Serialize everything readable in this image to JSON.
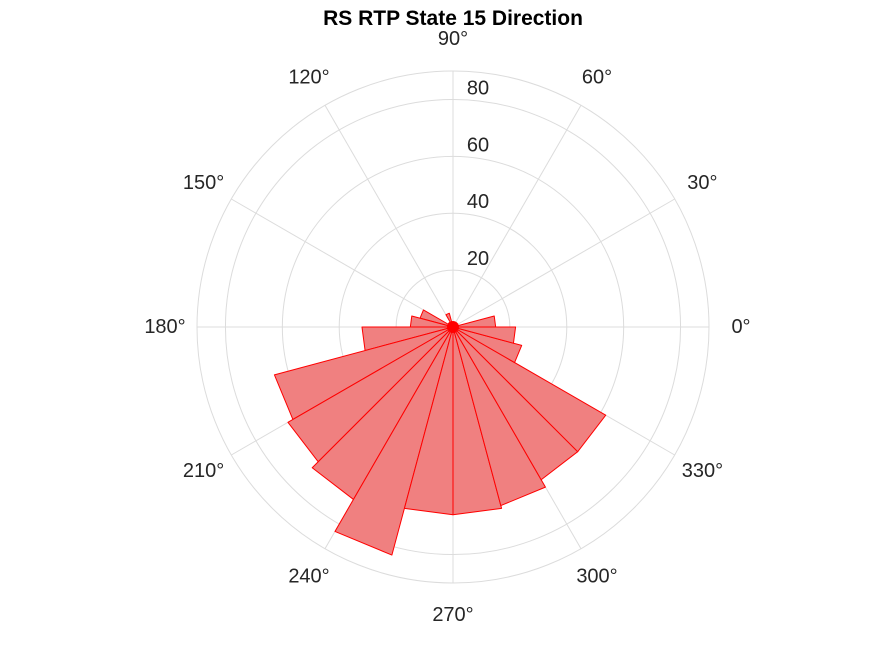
{
  "chart_data": {
    "type": "polar-histogram",
    "title": "RS  RTP State 15 Direction",
    "theta_ticks": [
      "0°",
      "30°",
      "60°",
      "90°",
      "120°",
      "150°",
      "180°",
      "210°",
      "240°",
      "270°",
      "300°",
      "330°"
    ],
    "r_ticks": [
      "20",
      "40",
      "60",
      "80"
    ],
    "r_tick_values": [
      20,
      40,
      60,
      80
    ],
    "rlim": [
      0,
      90
    ],
    "bin_width_deg": 15,
    "bins": [
      {
        "start": 0,
        "end": 15,
        "value": 15
      },
      {
        "start": 15,
        "end": 30,
        "value": 1
      },
      {
        "start": 30,
        "end": 45,
        "value": 1
      },
      {
        "start": 45,
        "end": 60,
        "value": 1
      },
      {
        "start": 60,
        "end": 75,
        "value": 1
      },
      {
        "start": 75,
        "end": 90,
        "value": 1
      },
      {
        "start": 90,
        "end": 105,
        "value": 1
      },
      {
        "start": 105,
        "end": 120,
        "value": 5
      },
      {
        "start": 120,
        "end": 135,
        "value": 2
      },
      {
        "start": 135,
        "end": 150,
        "value": 2
      },
      {
        "start": 150,
        "end": 165,
        "value": 12
      },
      {
        "start": 165,
        "end": 180,
        "value": 15
      },
      {
        "start": 180,
        "end": 195,
        "value": 32
      },
      {
        "start": 195,
        "end": 210,
        "value": 65
      },
      {
        "start": 210,
        "end": 225,
        "value": 67
      },
      {
        "start": 225,
        "end": 240,
        "value": 70
      },
      {
        "start": 240,
        "end": 255,
        "value": 83
      },
      {
        "start": 255,
        "end": 270,
        "value": 66
      },
      {
        "start": 270,
        "end": 285,
        "value": 66
      },
      {
        "start": 285,
        "end": 300,
        "value": 65
      },
      {
        "start": 300,
        "end": 315,
        "value": 62
      },
      {
        "start": 315,
        "end": 330,
        "value": 62
      },
      {
        "start": 330,
        "end": 345,
        "value": 25
      },
      {
        "start": 345,
        "end": 360,
        "value": 22
      }
    ],
    "grid": true,
    "colors": {
      "fill": "#f08080",
      "edge": "#ff0000",
      "grid": "#dcdcdc",
      "text": "#262626"
    }
  }
}
